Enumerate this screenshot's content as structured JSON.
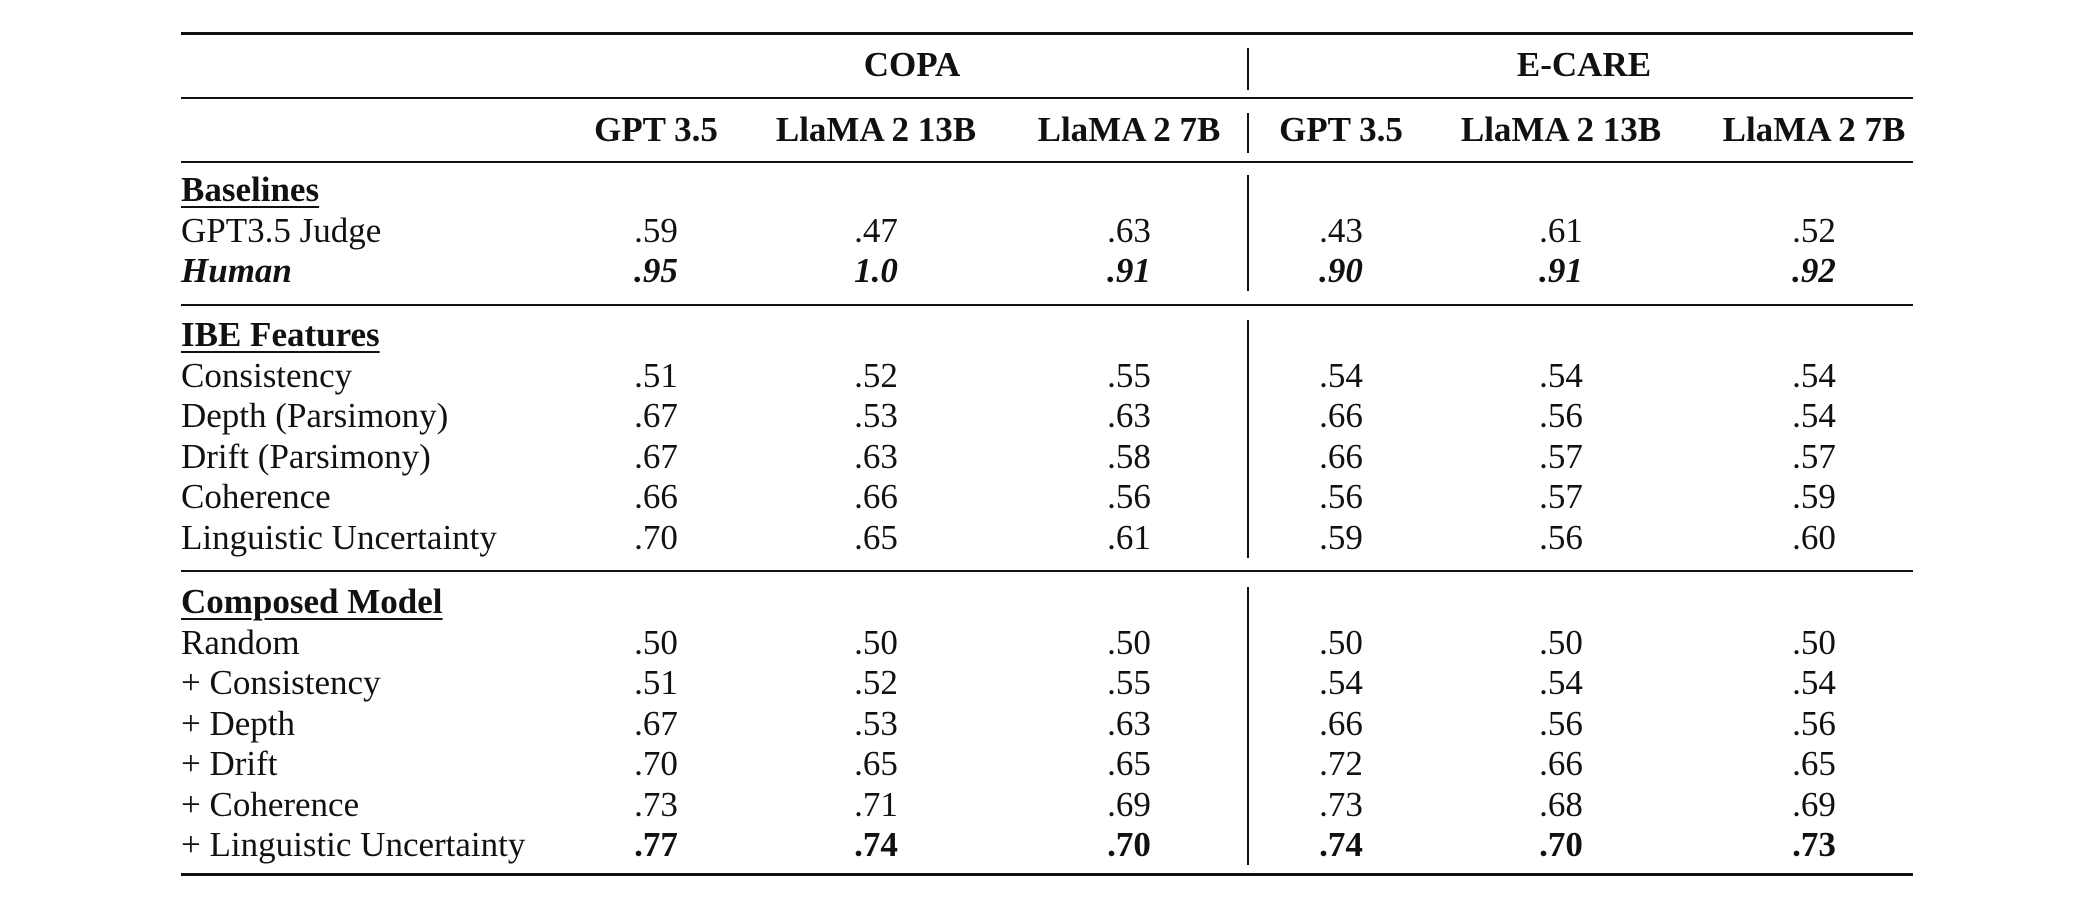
{
  "groups": [
    "COPA",
    "E-CARE"
  ],
  "columns": [
    "GPT 3.5",
    "LlaMA 2 13B",
    "LlaMA 2 7B",
    "GPT 3.5",
    "LlaMA 2 13B",
    "LlaMA 2 7B"
  ],
  "sections": [
    {
      "title": "Baselines",
      "rows": [
        {
          "label": "GPT3.5 Judge",
          "values": [
            ".59",
            ".47",
            ".63",
            ".43",
            ".61",
            ".52"
          ],
          "style": "normal"
        },
        {
          "label": "Human",
          "values": [
            ".95",
            "1.0",
            ".91",
            ".90",
            ".91",
            ".92"
          ],
          "style": "bold-italic"
        }
      ]
    },
    {
      "title": "IBE Features",
      "rows": [
        {
          "label": "Consistency",
          "values": [
            ".51",
            ".52",
            ".55",
            ".54",
            ".54",
            ".54"
          ],
          "style": "normal"
        },
        {
          "label": "Depth (Parsimony)",
          "values": [
            ".67",
            ".53",
            ".63",
            ".66",
            ".56",
            ".54"
          ],
          "style": "normal"
        },
        {
          "label": "Drift (Parsimony)",
          "values": [
            ".67",
            ".63",
            ".58",
            ".66",
            ".57",
            ".57"
          ],
          "style": "normal"
        },
        {
          "label": "Coherence",
          "values": [
            ".66",
            ".66",
            ".56",
            ".56",
            ".57",
            ".59"
          ],
          "style": "normal"
        },
        {
          "label": "Linguistic Uncertainty",
          "values": [
            ".70",
            ".65",
            ".61",
            ".59",
            ".56",
            ".60"
          ],
          "style": "normal"
        }
      ]
    },
    {
      "title": "Composed Model",
      "rows": [
        {
          "label": "Random",
          "values": [
            ".50",
            ".50",
            ".50",
            ".50",
            ".50",
            ".50"
          ],
          "style": "normal"
        },
        {
          "label": "+ Consistency",
          "values": [
            ".51",
            ".52",
            ".55",
            ".54",
            ".54",
            ".54"
          ],
          "style": "normal"
        },
        {
          "label": "+ Depth",
          "values": [
            ".67",
            ".53",
            ".63",
            ".66",
            ".56",
            ".56"
          ],
          "style": "normal"
        },
        {
          "label": "+ Drift",
          "values": [
            ".70",
            ".65",
            ".65",
            ".72",
            ".66",
            ".65"
          ],
          "style": "normal"
        },
        {
          "label": "+ Coherence",
          "values": [
            ".73",
            ".71",
            ".69",
            ".73",
            ".68",
            ".69"
          ],
          "style": "normal"
        },
        {
          "label": "+ Linguistic Uncertainty",
          "values": [
            ".77",
            ".74",
            ".70",
            ".74",
            ".70",
            ".73"
          ],
          "style": "bold-values"
        }
      ]
    }
  ]
}
